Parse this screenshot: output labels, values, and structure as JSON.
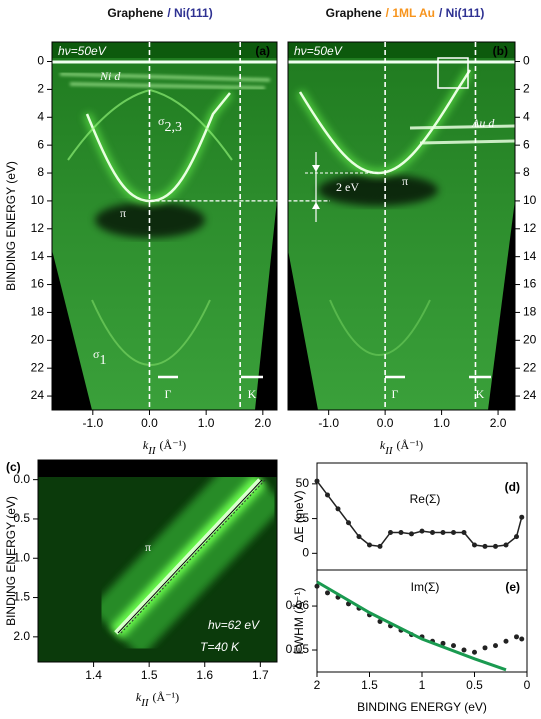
{
  "chart_data": [
    {
      "type": "image",
      "title_parts": [
        {
          "text": "Graphene",
          "color": "#111111"
        },
        {
          "text": "/ Ni(111)",
          "color": "#2e3192"
        }
      ],
      "annotations": {
        "energy": "hν=50eV",
        "panel": "(a)",
        "ni_d": "Ni d",
        "sigma23": {
          "text": "σ",
          "sub": "2,3"
        },
        "pi": "π",
        "sigma1": {
          "text": "σ",
          "sub": "1"
        },
        "gamma": "Γ",
        "k_point": "K"
      },
      "x_label": {
        "text": "k",
        "sub": "II",
        "unit": "(Å⁻¹)"
      },
      "y_label": "BINDING ENERGY (eV)",
      "xlim": [
        -1.72,
        2.25
      ],
      "xticks": [
        {
          "value": -1,
          "label": "-1.0"
        },
        {
          "value": 0,
          "label": "0.0"
        },
        {
          "value": 1,
          "label": "1.0"
        },
        {
          "value": 2,
          "label": "2.0"
        }
      ],
      "ylim": [
        25,
        -1.4
      ],
      "yticks": [
        0,
        2,
        4,
        6,
        8,
        10,
        12,
        14,
        16,
        18,
        20,
        22,
        24
      ],
      "vlines": [
        0,
        1.6
      ],
      "hlines": [
        10
      ]
    },
    {
      "type": "image",
      "title_parts": [
        {
          "text": "Graphene",
          "color": "#111111"
        },
        {
          "text": "/ 1ML Au",
          "color": "#f7941d"
        },
        {
          "text": "/ Ni(111)",
          "color": "#2e3192"
        }
      ],
      "annotations": {
        "energy": "hν=50eV",
        "panel": "(b)",
        "au_d": "Au d",
        "shift": "2 eV",
        "pi": "π",
        "gamma": "Γ",
        "k_point": "K"
      },
      "x_label": {
        "text": "k",
        "sub": "II",
        "unit": "(Å⁻¹)"
      },
      "xlim": [
        -1.72,
        2.3
      ],
      "xticks": [
        {
          "value": -1,
          "label": "-1.0"
        },
        {
          "value": 0,
          "label": "0.0"
        },
        {
          "value": 1,
          "label": "1.0"
        },
        {
          "value": 2,
          "label": "2.0"
        }
      ],
      "ylim": [
        25,
        -1.4
      ],
      "yticks": [
        0,
        2,
        4,
        6,
        8,
        10,
        12,
        14,
        16,
        18,
        20,
        22,
        24
      ],
      "vlines": [
        0,
        1.6
      ]
    },
    {
      "type": "image",
      "annotations": {
        "panel": "(c)",
        "pi": "π",
        "energy": "hν=62 eV",
        "temperature": "T=40 K"
      },
      "x_label": {
        "text": "k",
        "sub": "II",
        "unit": "(Å⁻¹)"
      },
      "y_label": "BINDING ENERGY (eV)",
      "xlim": [
        1.3,
        1.73
      ],
      "xticks": [
        1.4,
        1.5,
        1.6,
        1.7
      ],
      "ylim": [
        2.32,
        -0.25
      ],
      "yticks": [
        {
          "value": 0,
          "label": "0.0"
        },
        0.5,
        {
          "value": 1,
          "label": "1.0"
        },
        1.5,
        {
          "value": 2,
          "label": "2.0"
        }
      ]
    },
    {
      "type": "line",
      "annotations": {
        "label": "Re(Σ)",
        "panel": "(d)"
      },
      "y_label": "ΔE (meV)",
      "x": [
        2.0,
        1.9,
        1.8,
        1.7,
        1.6,
        1.5,
        1.4,
        1.3,
        1.2,
        1.1,
        1.0,
        0.9,
        0.8,
        0.7,
        0.6,
        0.5,
        0.4,
        0.3,
        0.2,
        0.1,
        0.05
      ],
      "values": [
        52,
        42,
        32,
        22,
        12,
        6,
        5,
        15,
        15,
        14,
        16,
        15,
        15,
        15,
        15,
        6,
        5,
        5,
        6,
        12,
        26
      ],
      "color": "#222222",
      "xlim": [
        2,
        0
      ],
      "ylim": [
        -12,
        65
      ],
      "yticks": [
        0,
        25,
        50
      ]
    },
    {
      "type": "scatter",
      "annotations": {
        "label": "Im(Σ)",
        "panel": "(e)"
      },
      "x_label": "BINDING ENERGY (eV)",
      "y_label": "FWHM (Å⁻¹)",
      "x": [
        2.0,
        1.9,
        1.8,
        1.7,
        1.6,
        1.5,
        1.4,
        1.3,
        1.2,
        1.1,
        1.0,
        0.9,
        0.8,
        0.7,
        0.6,
        0.5,
        0.4,
        0.3,
        0.2,
        0.1,
        0.05
      ],
      "values": [
        0.0645,
        0.063,
        0.062,
        0.0605,
        0.0595,
        0.058,
        0.0565,
        0.0555,
        0.0545,
        0.0535,
        0.053,
        0.052,
        0.0515,
        0.051,
        0.05,
        0.0495,
        0.0505,
        0.051,
        0.052,
        0.053,
        0.0525
      ],
      "color": "#222222",
      "fit_x": [
        2.0,
        1.5,
        1.0,
        0.5,
        0.2
      ],
      "fit_values": [
        0.0655,
        0.0585,
        0.0525,
        0.048,
        0.0455
      ],
      "fit_color": "#1a9a50",
      "xlim": [
        2,
        0
      ],
      "xticks": [
        2,
        1.5,
        1,
        0.5,
        0
      ],
      "ylim": [
        0.045,
        0.0682
      ],
      "yticks": [
        0.05,
        0.06
      ]
    }
  ]
}
